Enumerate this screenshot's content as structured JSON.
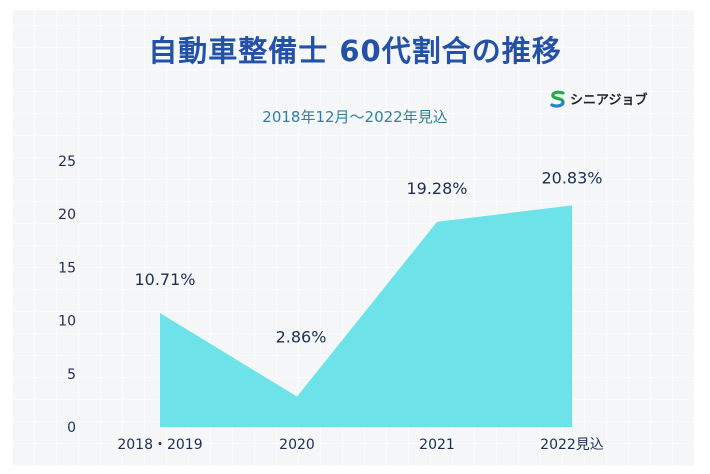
{
  "chart_data": {
    "type": "area",
    "title": "自動車整備士 60代割合の推移",
    "subtitle": "2018年12月～2022年見込",
    "categories": [
      "2018・2019",
      "2020",
      "2021",
      "2022見込"
    ],
    "values": [
      10.71,
      2.86,
      19.28,
      20.83
    ],
    "data_labels": [
      "10.71%",
      "2.86%",
      "19.28%",
      "20.83%"
    ],
    "ylim": [
      0,
      25
    ],
    "y_ticks": [
      "0",
      "5",
      "10",
      "15",
      "20",
      "25"
    ],
    "xlabel": "",
    "ylabel": "",
    "grid": false,
    "legend": "none",
    "colors": {
      "area": "#6de3e9",
      "title": "#2451a8",
      "subtitle": "#2f7fa8",
      "text": "#1a2f55"
    }
  },
  "logo": {
    "text": "シニアジョブ",
    "colors": [
      "#2aa84a",
      "#2a7fd0"
    ]
  }
}
